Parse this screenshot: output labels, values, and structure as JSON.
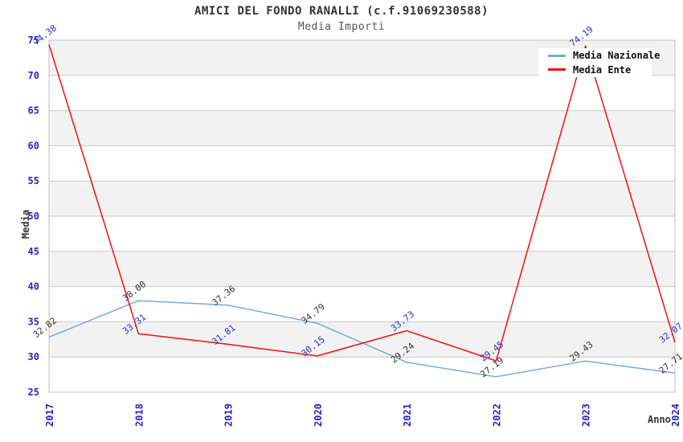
{
  "title": "AMICI DEL FONDO RANALLI (c.f.91069230588)",
  "subtitle": "Media Importi",
  "axes": {
    "y_label": "Media",
    "x_label": "Anno"
  },
  "legend": [
    {
      "label": "Media Nazionale",
      "color": "#74aae0"
    },
    {
      "label": "Media Ente",
      "color": "#f01010"
    }
  ],
  "colors": {
    "title": "#333333",
    "subtitle": "#555555",
    "tick_label": "#2424cc",
    "grid": "#c8c8c8",
    "stripe": "#f2f2f2",
    "plot_border": "#c0c0c0",
    "label_nazionale": "#333333",
    "label_ente": "#2233cc"
  },
  "chart_data": {
    "type": "line",
    "title": "AMICI DEL FONDO RANALLI (c.f.91069230588)",
    "subtitle": "Media Importi",
    "xlabel": "Anno",
    "ylabel": "Media",
    "x": [
      "2017",
      "2018",
      "2019",
      "2020",
      "2021",
      "2022",
      "2023",
      "2024"
    ],
    "series": [
      {
        "name": "Media Nazionale",
        "color": "#74aae0",
        "label_color": "#333333",
        "values": [
          32.82,
          38.0,
          37.36,
          34.79,
          29.24,
          27.19,
          29.43,
          27.71
        ]
      },
      {
        "name": "Media Ente",
        "color": "#f01010",
        "label_color": "#2233cc",
        "values": [
          74.38,
          33.31,
          31.81,
          30.15,
          33.73,
          29.45,
          74.19,
          32.07
        ]
      }
    ],
    "ylim": [
      25,
      75
    ],
    "ytick_step": 5,
    "grid": true,
    "stripes": true,
    "legend_position": "top-right",
    "value_label_decimals": 2
  }
}
